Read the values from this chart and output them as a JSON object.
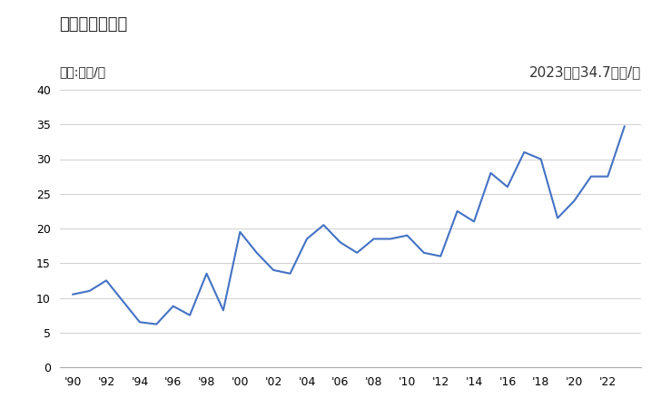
{
  "title": "輸出価格の推移",
  "unit_label": "単位:万円/台",
  "annotation": "2023年：34.7万円/台",
  "years": [
    1990,
    1991,
    1992,
    1993,
    1994,
    1995,
    1996,
    1997,
    1998,
    1999,
    2000,
    2001,
    2002,
    2003,
    2004,
    2005,
    2006,
    2007,
    2008,
    2009,
    2010,
    2011,
    2012,
    2013,
    2014,
    2015,
    2016,
    2017,
    2018,
    2019,
    2020,
    2021,
    2022,
    2023
  ],
  "values": [
    10.5,
    11.0,
    12.5,
    9.5,
    6.5,
    6.2,
    8.8,
    7.5,
    13.5,
    8.2,
    19.5,
    16.5,
    14.0,
    13.5,
    18.5,
    20.5,
    18.0,
    16.5,
    18.5,
    18.5,
    19.0,
    16.5,
    16.0,
    22.5,
    21.0,
    28.0,
    26.0,
    31.0,
    30.0,
    21.5,
    24.0,
    27.5,
    27.5,
    34.7
  ],
  "line_color": "#4472C4",
  "background_color": "#ffffff",
  "ylim": [
    0,
    40
  ],
  "yticks": [
    0,
    5,
    10,
    15,
    20,
    25,
    30,
    35,
    40
  ],
  "xtick_years": [
    1990,
    1992,
    1994,
    1996,
    1998,
    2000,
    2002,
    2004,
    2006,
    2008,
    2010,
    2012,
    2014,
    2016,
    2018,
    2020,
    2022
  ],
  "xtick_labels": [
    "'90",
    "'92",
    "'94",
    "'96",
    "'98",
    "'00",
    "'02",
    "'04",
    "'06",
    "'08",
    "'10",
    "'12",
    "'14",
    "'16",
    "'18",
    "'20",
    "'22"
  ],
  "title_fontsize": 13,
  "unit_fontsize": 10,
  "annotation_fontsize": 11,
  "tick_fontsize": 9,
  "grid_color": "#d0d0d0",
  "grid_linewidth": 0.7
}
